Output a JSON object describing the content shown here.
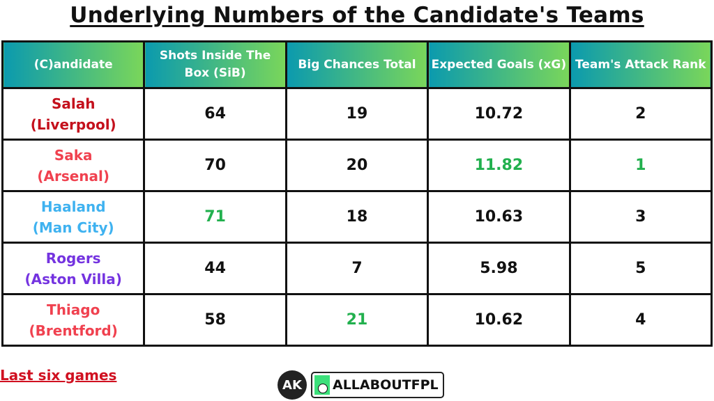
{
  "title": "Underlying Numbers of the Candidate's Teams",
  "headers": [
    "(C)andidate",
    "Shots Inside The Box (SiB)",
    "Big Chances Total",
    "Expected Goals (xG)",
    "Team's Attack Rank"
  ],
  "rows": [
    {
      "name": "Salah",
      "team": "(Liverpool)",
      "color": "#c4101c",
      "sib": "64",
      "bc": "19",
      "xg": "10.72",
      "rank": "2",
      "best": []
    },
    {
      "name": "Saka",
      "team": "(Arsenal)",
      "color": "#f0414f",
      "sib": "70",
      "bc": "20",
      "xg": "11.82",
      "rank": "1",
      "best": [
        "xg",
        "rank"
      ]
    },
    {
      "name": "Haaland",
      "team": "(Man City)",
      "color": "#3fb2f0",
      "sib": "71",
      "bc": "18",
      "xg": "10.63",
      "rank": "3",
      "best": [
        "sib"
      ]
    },
    {
      "name": "Rogers",
      "team": "(Aston Villa)",
      "color": "#7433e0",
      "sib": "44",
      "bc": "7",
      "xg": "5.98",
      "rank": "5",
      "best": []
    },
    {
      "name": "Thiago",
      "team": "(Brentford)",
      "color": "#f0414f",
      "sib": "58",
      "bc": "21",
      "xg": "10.62",
      "rank": "4",
      "best": [
        "bc"
      ]
    }
  ],
  "highlight_color": "#22b04e",
  "note": "Last six games",
  "logo": {
    "monogram": "AK",
    "brand": "ALLABOUTFPL"
  }
}
